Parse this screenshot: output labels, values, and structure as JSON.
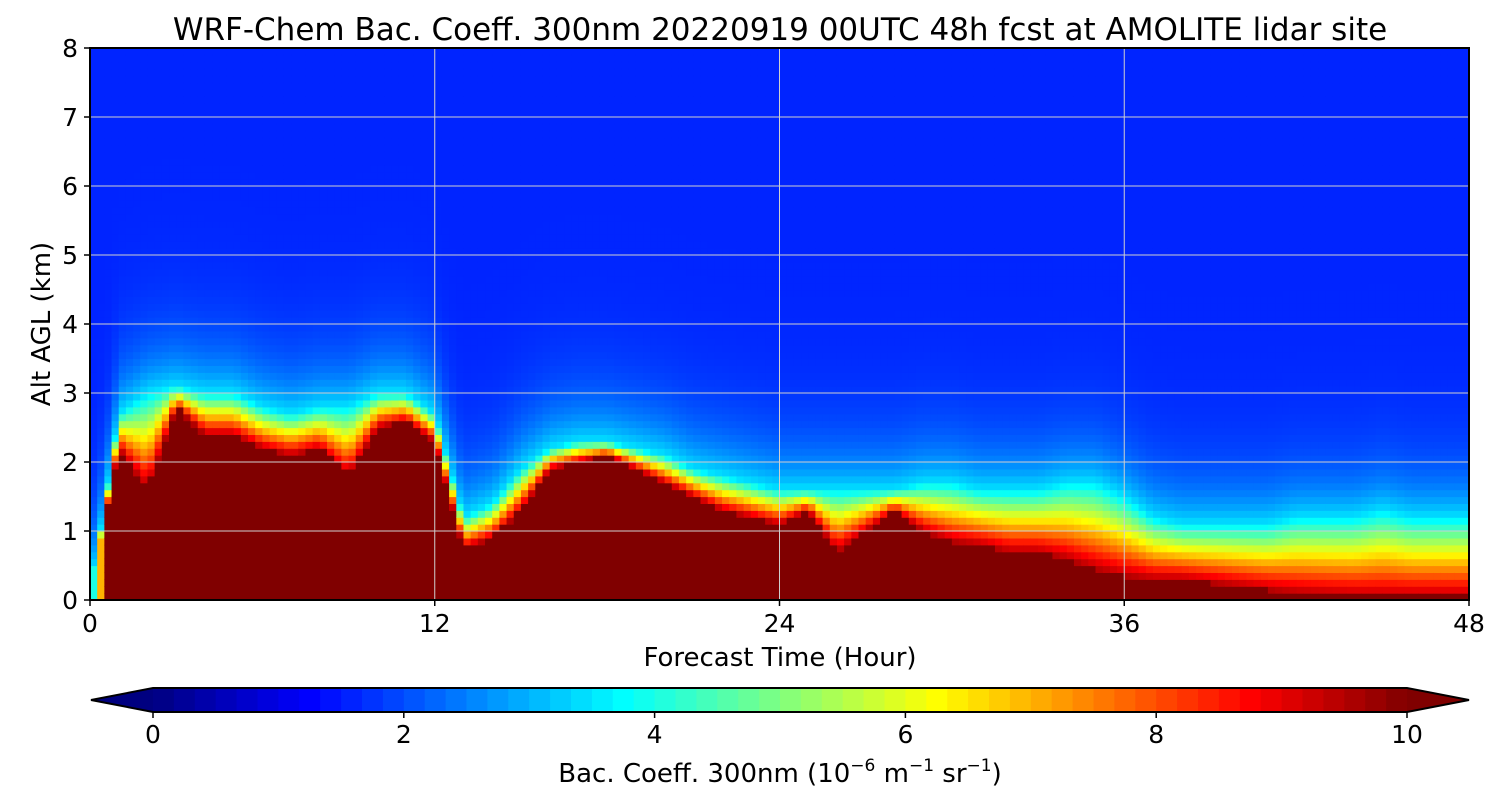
{
  "chart_data": {
    "type": "heatmap",
    "title": "WRF-Chem Bac. Coeff. 300nm  20220919 00UTC 48h fcst at AMOLITE lidar site",
    "xlabel": "Forecast Time (Hour)",
    "ylabel": "Alt AGL (km)",
    "xlim": [
      0,
      48
    ],
    "ylim": [
      0,
      8
    ],
    "xticks": [
      0,
      12,
      24,
      36,
      48
    ],
    "yticks": [
      0,
      1,
      2,
      3,
      4,
      5,
      6,
      7,
      8
    ],
    "grid": true,
    "colormap": "jet",
    "x_hours": [
      0,
      1,
      2,
      3,
      4,
      5,
      6,
      7,
      8,
      9,
      10,
      11,
      12,
      13,
      14,
      15,
      16,
      17,
      18,
      19,
      20,
      21,
      22,
      23,
      24,
      25,
      26,
      27,
      28,
      29,
      30,
      31,
      32,
      33,
      34,
      35,
      36,
      37,
      38,
      39,
      40,
      41,
      42,
      43,
      44,
      45,
      46,
      47,
      48
    ],
    "saturated_layer_top_km": [
      0.0,
      2.2,
      1.6,
      2.8,
      2.4,
      2.4,
      2.2,
      2.1,
      2.2,
      1.8,
      2.5,
      2.6,
      2.3,
      0.75,
      0.9,
      1.3,
      1.9,
      2.0,
      2.1,
      1.9,
      1.7,
      1.5,
      1.3,
      1.2,
      1.1,
      1.3,
      0.7,
      1.0,
      1.3,
      1.0,
      0.85,
      0.8,
      0.7,
      0.7,
      0.6,
      0.45,
      0.35,
      0.3,
      0.3,
      0.25,
      0.2,
      0.15,
      0.1,
      0.08,
      0.06,
      0.05,
      0.05,
      0.05,
      0.05
    ],
    "aerosol_layer_top_km": [
      0.0,
      2.7,
      3.0,
      3.1,
      3.0,
      3.0,
      2.8,
      2.7,
      2.8,
      2.8,
      3.0,
      3.0,
      2.7,
      1.2,
      1.4,
      1.9,
      2.2,
      2.3,
      2.3,
      2.2,
      2.1,
      1.9,
      1.8,
      1.7,
      1.6,
      1.6,
      1.6,
      1.6,
      1.6,
      1.7,
      1.7,
      1.6,
      1.6,
      1.6,
      1.7,
      1.7,
      1.5,
      1.2,
      1.1,
      1.1,
      1.1,
      1.1,
      1.2,
      1.2,
      1.2,
      1.3,
      1.2,
      1.2,
      1.2
    ],
    "colorbar": {
      "label_main": "Bac. Coeff. 300nm  (10",
      "label_exp1": "−6",
      "label_mid": " m",
      "label_exp2": "−1",
      "label_mid2": " sr",
      "label_exp3": "−1",
      "label_end": ")",
      "ticks": [
        0,
        2,
        4,
        6,
        8,
        10
      ],
      "range": [
        0,
        10
      ],
      "extend": "both"
    },
    "x_tick_labels": [
      "0",
      "12",
      "24",
      "36",
      "48"
    ],
    "y_tick_labels": [
      "0",
      "1",
      "2",
      "3",
      "4",
      "5",
      "6",
      "7",
      "8"
    ],
    "colorbar_tick_labels": [
      "0",
      "2",
      "4",
      "6",
      "8",
      "10"
    ]
  }
}
